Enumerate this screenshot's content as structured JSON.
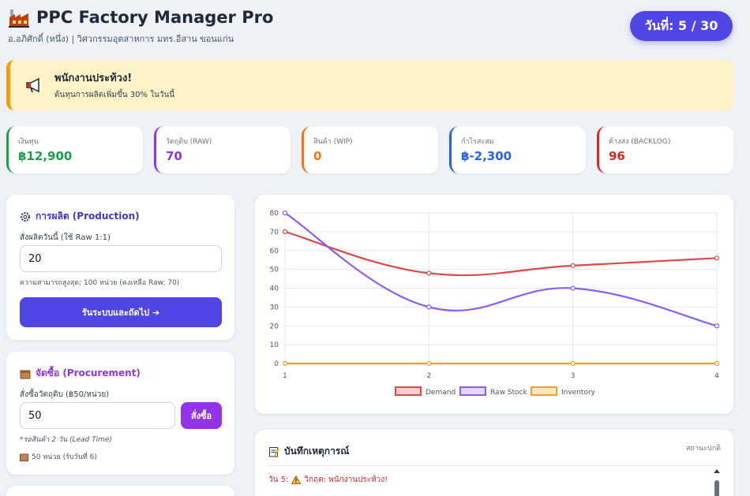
{
  "header": {
    "title": "PPC Factory Manager Pro",
    "subtitle": "อ.อภิศักดิ์ (หนึ่ง) | วิศวกรรมอุตสาหการ มทร.อีสาน ขอนแก่น",
    "day_label": "วันที่: 5 / 30"
  },
  "alert": {
    "title": "พนักงานประท้วง!",
    "body": "ต้นทุนการผลิตเพิ่มขึ้น 30% ในวันนี้",
    "icon": "megaphone-icon"
  },
  "stats": [
    {
      "label": "เงินทุน",
      "value": "฿12,900",
      "color": "#16a34a"
    },
    {
      "label": "วัตถุดิบ (RAW)",
      "value": "70",
      "color": "#9333ea"
    },
    {
      "label": "สินค้า (WIP)",
      "value": "0",
      "color": "#f97316"
    },
    {
      "label": "กำไรสะสม",
      "value": "฿-2,300",
      "color": "#2563eb"
    },
    {
      "label": "ค้างส่ง (BACKLOG)",
      "value": "96",
      "color": "#dc2626"
    }
  ],
  "production": {
    "title": "การผลิต (Production)",
    "field_label": "สั่งผลิตวันนี้ (ใช้ Raw 1:1)",
    "value": "20",
    "hint": "ความสามารถสูงสุด: 100 หน่วย (คงเหลือ Raw: 70)",
    "button": "รันระบบและถัดไป ➔"
  },
  "procurement": {
    "title": "จัดซื้อ (Procurement)",
    "field_label": "สั่งซื้อวัตถุดิบ (฿50/หน่วย)",
    "value": "50",
    "button": "สั่งซื้อ",
    "lead_time_note": "*รอสินค้า 2 วัน (Lead Time)",
    "pending": "50 หน่วย (รับวันที่ 6)"
  },
  "log": {
    "title": "บันทึกเหตุการณ์",
    "status": "สถานะปกติ",
    "entries": [
      {
        "day": "วัน 5:",
        "text": "วิกฤต: พนักงานประท้วง!"
      }
    ]
  },
  "chart_data": {
    "type": "line",
    "x": [
      1,
      2,
      3,
      4
    ],
    "ylim": [
      0,
      80
    ],
    "yticks": [
      0,
      10,
      20,
      30,
      40,
      50,
      60,
      70,
      80
    ],
    "grid": true,
    "legend_position": "bottom",
    "series": [
      {
        "name": "Demand",
        "values": [
          70,
          48,
          52,
          56
        ],
        "color": "#e04848"
      },
      {
        "name": "Raw Stock",
        "values": [
          80,
          30,
          40,
          20
        ],
        "color": "#8b5cf6"
      },
      {
        "name": "Inventory",
        "values": [
          0,
          0,
          0,
          0
        ],
        "color": "#f0a020"
      }
    ]
  }
}
